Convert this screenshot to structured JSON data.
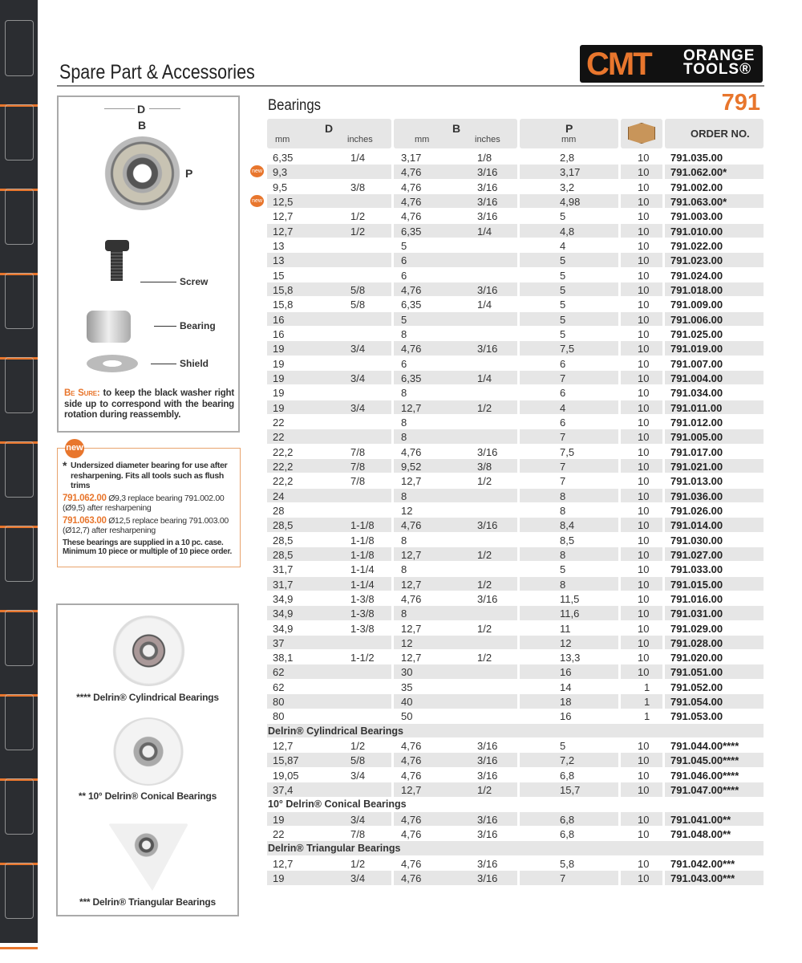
{
  "page": {
    "title": "Spare Part & Accessories",
    "section": "Bearings",
    "number": "791",
    "logo": {
      "brand": "CMT",
      "line1": "ORANGE",
      "line2": "TOOLS®"
    }
  },
  "diagram": {
    "d": "D",
    "b": "B",
    "p": "P",
    "screw": "Screw",
    "bearing": "Bearing",
    "shield": "Shield",
    "note_label": "Be Sure:",
    "note_text": " to keep the black washer right side up to correspond with the bearing rotation during reassembly."
  },
  "new_box": {
    "badge": "new",
    "star": "*",
    "desc": "Undersized diameter bearing for use after resharpening. Fits all tools such as flush trims",
    "items": [
      {
        "code": "791.062.00",
        "text": "Ø9,3 replace bearing 791.002.00 (Ø9,5) after resharpening"
      },
      {
        "code": "791.063.00",
        "text": "Ø12,5 replace bearing 791.003.00 (Ø12,7) after resharpening"
      }
    ],
    "footer": "These bearings are supplied in a 10 pc. case. Minimum 10 piece or multiple of 10 piece order."
  },
  "products": [
    {
      "caption": "**** Delrin® Cylindrical Bearings"
    },
    {
      "caption": "** 10° Delrin® Conical Bearings"
    },
    {
      "caption": "*** Delrin® Triangular Bearings"
    }
  ],
  "table": {
    "headers": {
      "d": "D",
      "b": "B",
      "p": "P",
      "mm": "mm",
      "inches": "inches",
      "qty_icon": "box-icon",
      "order": "ORDER NO."
    },
    "rows": [
      [
        "6,35",
        "1/4",
        "3,17",
        "1/8",
        "2,8",
        "10",
        "791.035.00"
      ],
      [
        "9,3",
        "",
        "4,76",
        "3/16",
        "3,17",
        "10",
        "791.062.00*",
        "new"
      ],
      [
        "9,5",
        "3/8",
        "4,76",
        "3/16",
        "3,2",
        "10",
        "791.002.00"
      ],
      [
        "12,5",
        "",
        "4,76",
        "3/16",
        "4,98",
        "10",
        "791.063.00*",
        "new"
      ],
      [
        "12,7",
        "1/2",
        "4,76",
        "3/16",
        "5",
        "10",
        "791.003.00"
      ],
      [
        "12,7",
        "1/2",
        "6,35",
        "1/4",
        "4,8",
        "10",
        "791.010.00"
      ],
      [
        "13",
        "",
        "5",
        "",
        "4",
        "10",
        "791.022.00"
      ],
      [
        "13",
        "",
        "6",
        "",
        "5",
        "10",
        "791.023.00"
      ],
      [
        "15",
        "",
        "6",
        "",
        "5",
        "10",
        "791.024.00"
      ],
      [
        "15,8",
        "5/8",
        "4,76",
        "3/16",
        "5",
        "10",
        "791.018.00"
      ],
      [
        "15,8",
        "5/8",
        "6,35",
        "1/4",
        "5",
        "10",
        "791.009.00"
      ],
      [
        "16",
        "",
        "5",
        "",
        "5",
        "10",
        "791.006.00"
      ],
      [
        "16",
        "",
        "8",
        "",
        "5",
        "10",
        "791.025.00"
      ],
      [
        "19",
        "3/4",
        "4,76",
        "3/16",
        "7,5",
        "10",
        "791.019.00"
      ],
      [
        "19",
        "",
        "6",
        "",
        "6",
        "10",
        "791.007.00"
      ],
      [
        "19",
        "3/4",
        "6,35",
        "1/4",
        "7",
        "10",
        "791.004.00"
      ],
      [
        "19",
        "",
        "8",
        "",
        "6",
        "10",
        "791.034.00"
      ],
      [
        "19",
        "3/4",
        "12,7",
        "1/2",
        "4",
        "10",
        "791.011.00"
      ],
      [
        "22",
        "",
        "8",
        "",
        "6",
        "10",
        "791.012.00"
      ],
      [
        "22",
        "",
        "8",
        "",
        "7",
        "10",
        "791.005.00"
      ],
      [
        "22,2",
        "7/8",
        "4,76",
        "3/16",
        "7,5",
        "10",
        "791.017.00"
      ],
      [
        "22,2",
        "7/8",
        "9,52",
        "3/8",
        "7",
        "10",
        "791.021.00"
      ],
      [
        "22,2",
        "7/8",
        "12,7",
        "1/2",
        "7",
        "10",
        "791.013.00"
      ],
      [
        "24",
        "",
        "8",
        "",
        "8",
        "10",
        "791.036.00"
      ],
      [
        "28",
        "",
        "12",
        "",
        "8",
        "10",
        "791.026.00"
      ],
      [
        "28,5",
        "1-1/8",
        "4,76",
        "3/16",
        "8,4",
        "10",
        "791.014.00"
      ],
      [
        "28,5",
        "1-1/8",
        "8",
        "",
        "8,5",
        "10",
        "791.030.00"
      ],
      [
        "28,5",
        "1-1/8",
        "12,7",
        "1/2",
        "8",
        "10",
        "791.027.00"
      ],
      [
        "31,7",
        "1-1/4",
        "8",
        "",
        "5",
        "10",
        "791.033.00"
      ],
      [
        "31,7",
        "1-1/4",
        "12,7",
        "1/2",
        "8",
        "10",
        "791.015.00"
      ],
      [
        "34,9",
        "1-3/8",
        "4,76",
        "3/16",
        "11,5",
        "10",
        "791.016.00"
      ],
      [
        "34,9",
        "1-3/8",
        "8",
        "",
        "11,6",
        "10",
        "791.031.00"
      ],
      [
        "34,9",
        "1-3/8",
        "12,7",
        "1/2",
        "11",
        "10",
        "791.029.00"
      ],
      [
        "37",
        "",
        "12",
        "",
        "12",
        "10",
        "791.028.00"
      ],
      [
        "38,1",
        "1-1/2",
        "12,7",
        "1/2",
        "13,3",
        "10",
        "791.020.00"
      ],
      [
        "62",
        "",
        "30",
        "",
        "16",
        "10",
        "791.051.00"
      ],
      [
        "62",
        "",
        "35",
        "",
        "14",
        "1",
        "791.052.00"
      ],
      [
        "80",
        "",
        "40",
        "",
        "18",
        "1",
        "791.054.00"
      ],
      [
        "80",
        "",
        "50",
        "",
        "16",
        "1",
        "791.053.00"
      ],
      [
        "Delrin® Cylindrical Bearings"
      ],
      [
        "12,7",
        "1/2",
        "4,76",
        "3/16",
        "5",
        "10",
        "791.044.00****"
      ],
      [
        "15,87",
        "5/8",
        "4,76",
        "3/16",
        "7,2",
        "10",
        "791.045.00****"
      ],
      [
        "19,05",
        "3/4",
        "4,76",
        "3/16",
        "6,8",
        "10",
        "791.046.00****"
      ],
      [
        "37,4",
        "",
        "12,7",
        "1/2",
        "15,7",
        "10",
        "791.047.00****"
      ],
      [
        "10° Delrin® Conical Bearings"
      ],
      [
        "19",
        "3/4",
        "4,76",
        "3/16",
        "6,8",
        "10",
        "791.041.00**"
      ],
      [
        "22",
        "7/8",
        "4,76",
        "3/16",
        "6,8",
        "10",
        "791.048.00**"
      ],
      [
        "Delrin® Triangular Bearings"
      ],
      [
        "12,7",
        "1/2",
        "4,76",
        "3/16",
        "5,8",
        "10",
        "791.042.00***"
      ],
      [
        "19",
        "3/4",
        "4,76",
        "3/16",
        "7",
        "10",
        "791.043.00***"
      ]
    ]
  },
  "colors": {
    "accent": "#e8762d",
    "sidebar": "#2b2d31",
    "stripe": "#e6e6e6"
  }
}
